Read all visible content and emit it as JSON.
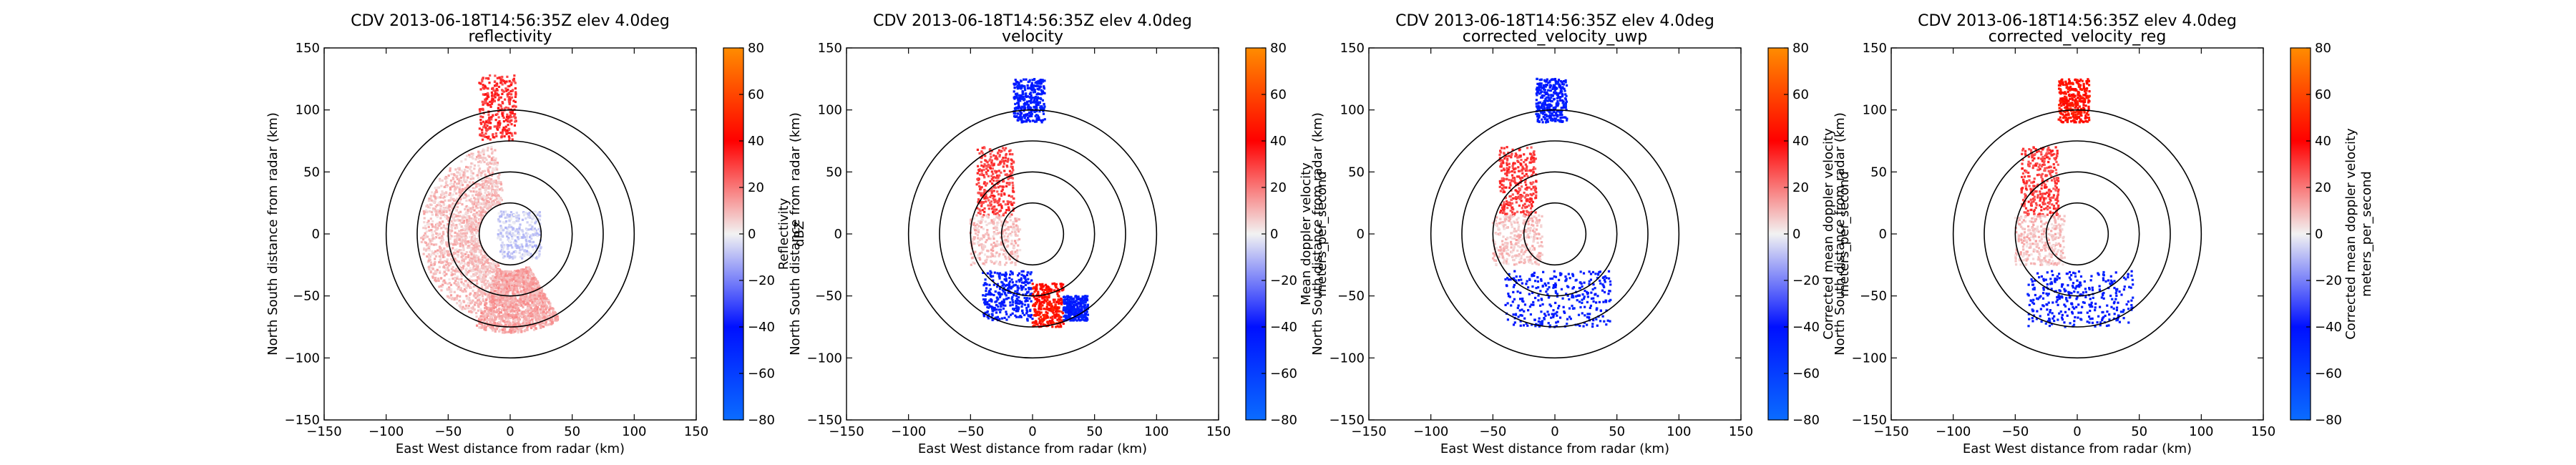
{
  "chart_data": [
    {
      "type": "scatter",
      "title": "CDV 2013-06-18T14:56:35Z elev 4.0deg",
      "subtitle": "reflectivity",
      "xlabel": "East West distance from radar (km)",
      "ylabel": "North South distance from radar (km)",
      "xlim": [
        -150,
        150
      ],
      "ylim": [
        -150,
        150
      ],
      "xticks": [
        "−150",
        "−100",
        "−50",
        "0",
        "50",
        "100",
        "150"
      ],
      "yticks": [
        "−150",
        "−100",
        "−50",
        "0",
        "50",
        "100",
        "150"
      ],
      "range_rings_km": [
        25,
        50,
        75,
        100
      ],
      "colorbar": {
        "label_lines": [
          "Reflectivity",
          "dBZ"
        ],
        "vmin": -80,
        "vmax": 80,
        "ticks": [
          "80",
          "60",
          "40",
          "20",
          "0",
          "−20",
          "−40",
          "−60",
          "−80"
        ]
      },
      "echo_regions": [
        {
          "shape": "ring-arc",
          "r_km": [
            25,
            72
          ],
          "azimuth_deg": [
            200,
            350
          ],
          "value": 8
        },
        {
          "shape": "ring-arc",
          "r_km": [
            30,
            80
          ],
          "azimuth_deg": [
            150,
            200
          ],
          "value": 12
        },
        {
          "shape": "box",
          "x_km": [
            -25,
            5
          ],
          "y_km": [
            75,
            128
          ],
          "value": 32
        },
        {
          "shape": "box",
          "x_km": [
            -10,
            25
          ],
          "y_km": [
            -20,
            18
          ],
          "value": -6
        }
      ]
    },
    {
      "type": "scatter",
      "title": "CDV 2013-06-18T14:56:35Z elev 4.0deg",
      "subtitle": "velocity",
      "xlabel": "East West distance from radar (km)",
      "ylabel": "North South distance from radar (km)",
      "xlim": [
        -150,
        150
      ],
      "ylim": [
        -150,
        150
      ],
      "xticks": [
        "−150",
        "−100",
        "−50",
        "0",
        "50",
        "100",
        "150"
      ],
      "yticks": [
        "−150",
        "−100",
        "−50",
        "0",
        "50",
        "100",
        "150"
      ],
      "range_rings_km": [
        25,
        50,
        75,
        100
      ],
      "colorbar": {
        "label_lines": [
          "Mean doppler velocity",
          "meters_per_second"
        ],
        "vmin": -80,
        "vmax": 80,
        "ticks": [
          "80",
          "60",
          "40",
          "20",
          "0",
          "−20",
          "−40",
          "−60",
          "−80"
        ]
      },
      "echo_regions": [
        {
          "shape": "box",
          "x_km": [
            -45,
            -15
          ],
          "y_km": [
            15,
            70
          ],
          "value": 30
        },
        {
          "shape": "box",
          "x_km": [
            -50,
            -10
          ],
          "y_km": [
            -25,
            15
          ],
          "value": 8
        },
        {
          "shape": "box",
          "x_km": [
            -40,
            0
          ],
          "y_km": [
            -70,
            -30
          ],
          "value": -45
        },
        {
          "shape": "box",
          "x_km": [
            0,
            25
          ],
          "y_km": [
            -75,
            -40
          ],
          "value": 45
        },
        {
          "shape": "box",
          "x_km": [
            -15,
            10
          ],
          "y_km": [
            90,
            125
          ],
          "value": -45
        },
        {
          "shape": "box",
          "x_km": [
            25,
            45
          ],
          "y_km": [
            -70,
            -50
          ],
          "value": -45
        }
      ]
    },
    {
      "type": "scatter",
      "title": "CDV 2013-06-18T14:56:35Z elev 4.0deg",
      "subtitle": "corrected_velocity_uwp",
      "xlabel": "East West distance from radar (km)",
      "ylabel": "North South distance from radar (km)",
      "xlim": [
        -150,
        150
      ],
      "ylim": [
        -150,
        150
      ],
      "xticks": [
        "−150",
        "−100",
        "−50",
        "0",
        "50",
        "100",
        "150"
      ],
      "yticks": [
        "−150",
        "−100",
        "−50",
        "0",
        "50",
        "100",
        "150"
      ],
      "range_rings_km": [
        25,
        50,
        75,
        100
      ],
      "colorbar": {
        "label_lines": [
          "Corrected mean doppler velocity",
          "meters_per_second"
        ],
        "vmin": -80,
        "vmax": 80,
        "ticks": [
          "80",
          "60",
          "40",
          "20",
          "0",
          "−20",
          "−40",
          "−60",
          "−80"
        ]
      },
      "echo_regions": [
        {
          "shape": "box",
          "x_km": [
            -45,
            -15
          ],
          "y_km": [
            15,
            70
          ],
          "value": 30
        },
        {
          "shape": "box",
          "x_km": [
            -50,
            -10
          ],
          "y_km": [
            -25,
            15
          ],
          "value": 8
        },
        {
          "shape": "box",
          "x_km": [
            -40,
            45
          ],
          "y_km": [
            -75,
            -30
          ],
          "value": -45
        },
        {
          "shape": "box",
          "x_km": [
            -15,
            10
          ],
          "y_km": [
            90,
            125
          ],
          "value": -45
        }
      ]
    },
    {
      "type": "scatter",
      "title": "CDV 2013-06-18T14:56:35Z elev 4.0deg",
      "subtitle": "corrected_velocity_reg",
      "xlabel": "East West distance from radar (km)",
      "ylabel": "North South distance from radar (km)",
      "xlim": [
        -150,
        150
      ],
      "ylim": [
        -150,
        150
      ],
      "xticks": [
        "−150",
        "−100",
        "−50",
        "0",
        "50",
        "100",
        "150"
      ],
      "yticks": [
        "−150",
        "−100",
        "−50",
        "0",
        "50",
        "100",
        "150"
      ],
      "range_rings_km": [
        25,
        50,
        75,
        100
      ],
      "colorbar": {
        "label_lines": [
          "Corrected mean doppler velocity",
          "meters_per_second"
        ],
        "vmin": -80,
        "vmax": 80,
        "ticks": [
          "80",
          "60",
          "40",
          "20",
          "0",
          "−20",
          "−40",
          "−60",
          "−80"
        ]
      },
      "echo_regions": [
        {
          "shape": "box",
          "x_km": [
            -45,
            -15
          ],
          "y_km": [
            15,
            70
          ],
          "value": 30
        },
        {
          "shape": "box",
          "x_km": [
            -50,
            -10
          ],
          "y_km": [
            -25,
            15
          ],
          "value": 8
        },
        {
          "shape": "box",
          "x_km": [
            -40,
            45
          ],
          "y_km": [
            -75,
            -30
          ],
          "value": -45
        },
        {
          "shape": "box",
          "x_km": [
            -15,
            10
          ],
          "y_km": [
            90,
            125
          ],
          "value": 45
        }
      ]
    }
  ],
  "colors": {
    "negative_end": "#0a6cff",
    "mid_negative": "#0010ff",
    "neutral": "#f2f2f2",
    "mid_positive": "#ff0000",
    "positive_end": "#ff8c00"
  }
}
